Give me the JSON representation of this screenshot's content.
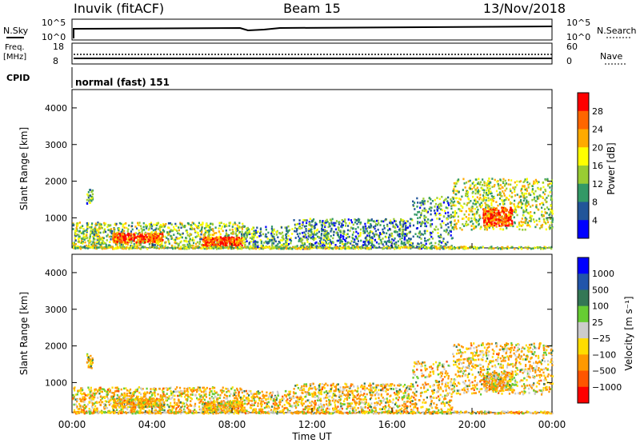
{
  "header": {
    "station": "Inuvik (fitACF)",
    "beam": "Beam 15",
    "date": "13/Nov/2018"
  },
  "panels": {
    "noise": {
      "left_label": "N.Sky",
      "right_label": "N.Search",
      "left_ticks": [
        "10^5",
        "10^0"
      ],
      "right_ticks": [
        "10^5",
        "10^0"
      ]
    },
    "freq": {
      "left_label_1": "Freq.",
      "left_label_2": "[MHz]",
      "right_label": "Nave",
      "left_ticks": [
        "18",
        "8"
      ],
      "right_ticks": [
        "60",
        "0"
      ]
    },
    "cpid": {
      "label": "CPID",
      "text": "normal (fast) 151"
    }
  },
  "chart_data": [
    {
      "type": "heatmap",
      "name": "power",
      "ylabel": "Slant Range [km]",
      "y_ticks": [
        "4000",
        "3000",
        "2000",
        "1000"
      ],
      "ylim": [
        180,
        4500
      ],
      "colorbar": {
        "label": "Power [dB]",
        "ticks": [
          "28",
          "24",
          "20",
          "16",
          "12",
          "8",
          "4"
        ],
        "colors": [
          "#ff0000",
          "#ff6600",
          "#ffaa00",
          "#ffff00",
          "#99cc33",
          "#339966",
          "#225599",
          "#0000ff"
        ]
      },
      "regions": [
        {
          "t": [
            0.0,
            8.5
          ],
          "r": [
            200,
            900
          ],
          "level": "medium"
        },
        {
          "t": [
            2.0,
            4.5
          ],
          "r": [
            350,
            600
          ],
          "level": "high"
        },
        {
          "t": [
            6.5,
            8.5
          ],
          "r": [
            250,
            500
          ],
          "level": "high"
        },
        {
          "t": [
            11.0,
            17.0
          ],
          "r": [
            180,
            1000
          ],
          "level": "low"
        },
        {
          "t": [
            19.0,
            24.0
          ],
          "r": [
            700,
            2100
          ],
          "level": "medium"
        },
        {
          "t": [
            20.5,
            22.0
          ],
          "r": [
            800,
            1300
          ],
          "level": "high"
        }
      ]
    },
    {
      "type": "heatmap",
      "name": "velocity",
      "ylabel": "Slant Range [km]",
      "y_ticks": [
        "4000",
        "3000",
        "2000",
        "1000"
      ],
      "ylim": [
        180,
        4500
      ],
      "colorbar": {
        "label": "Velocity [m s⁻¹]",
        "ticks": [
          "1000",
          "500",
          "100",
          "25",
          "−25",
          "−100",
          "−500",
          "−1000"
        ],
        "colors": [
          "#0000ff",
          "#2255aa",
          "#337755",
          "#66cc33",
          "#cccccc",
          "#ffdd00",
          "#ff9900",
          "#ff5500",
          "#ff0000"
        ]
      }
    }
  ],
  "x_axis": {
    "ticks": [
      "00:00",
      "04:00",
      "08:00",
      "12:00",
      "16:00",
      "20:00",
      "00:00"
    ],
    "label": "Time UT"
  }
}
